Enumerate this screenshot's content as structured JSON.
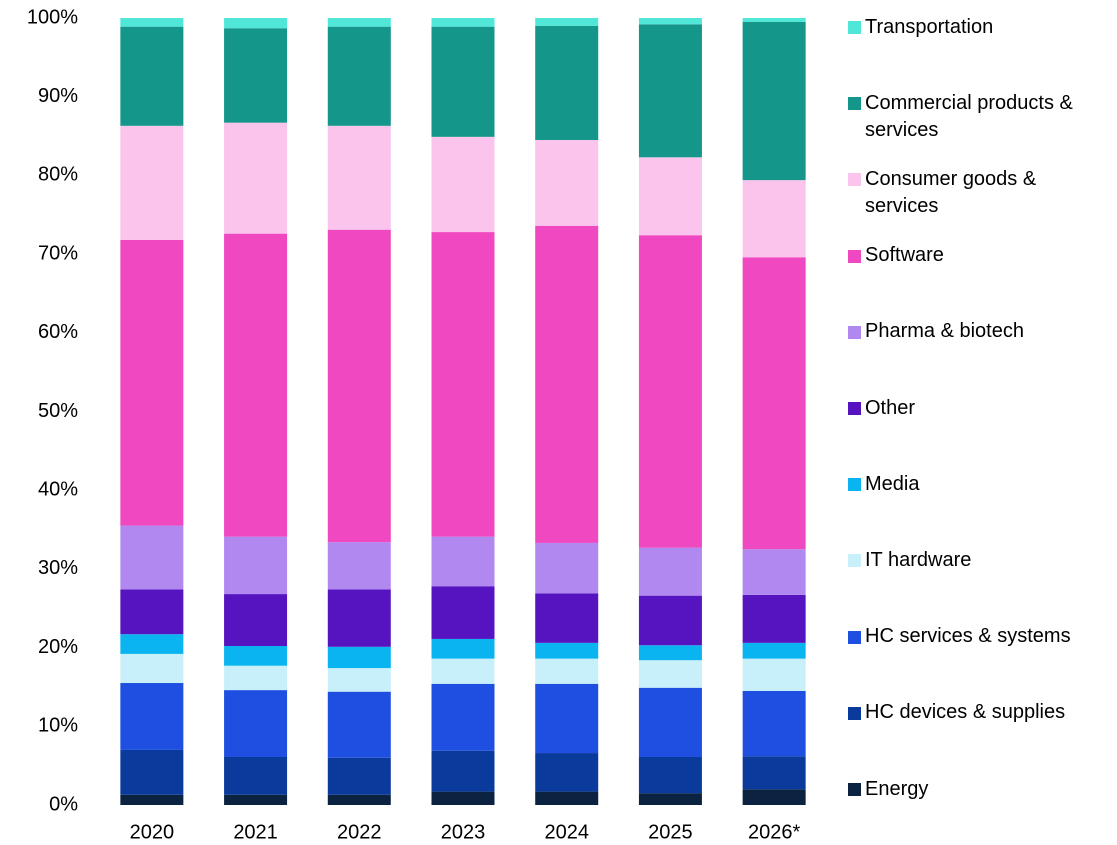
{
  "chart_data": {
    "type": "stacked_bar",
    "categories": [
      "2020",
      "2021",
      "2022",
      "2023",
      "2024",
      "2025",
      "2026*"
    ],
    "series": [
      {
        "name": "Energy",
        "color": "#0b2341",
        "values": [
          1.3,
          1.3,
          1.3,
          1.7,
          1.7,
          1.5,
          2.0
        ]
      },
      {
        "name": "HC devices & supplies",
        "color": "#0a3a9c",
        "values": [
          5.7,
          4.8,
          4.7,
          5.2,
          4.9,
          4.6,
          4.2
        ]
      },
      {
        "name": "HC services & systems",
        "color": "#1f4fe0",
        "values": [
          8.5,
          8.5,
          8.4,
          8.5,
          8.8,
          8.8,
          8.3
        ]
      },
      {
        "name": "IT hardware",
        "color": "#c8f0fa",
        "values": [
          3.7,
          3.1,
          3.0,
          3.2,
          3.2,
          3.5,
          4.1
        ]
      },
      {
        "name": "Media",
        "color": "#0ab4f0",
        "values": [
          2.5,
          2.5,
          2.7,
          2.5,
          2.0,
          1.9,
          2.0
        ]
      },
      {
        "name": "Other",
        "color": "#5514c0",
        "values": [
          5.7,
          6.6,
          7.3,
          6.7,
          6.3,
          6.3,
          6.1
        ]
      },
      {
        "name": "Pharma & biotech",
        "color": "#b088f0",
        "values": [
          8.1,
          7.3,
          6.0,
          6.3,
          6.4,
          6.1,
          5.8
        ]
      },
      {
        "name": "Software",
        "color": "#f048c0",
        "values": [
          36.3,
          38.5,
          39.7,
          38.7,
          40.3,
          39.7,
          37.1
        ]
      },
      {
        "name": "Consumer goods & services",
        "color": "#fac4ec",
        "values": [
          14.5,
          14.1,
          13.2,
          12.1,
          10.9,
          9.9,
          9.8
        ]
      },
      {
        "name": "Commercial products & services",
        "color": "#14968a",
        "values": [
          12.6,
          12.0,
          12.6,
          14.0,
          14.5,
          16.9,
          20.1
        ]
      },
      {
        "name": "Transportation",
        "color": "#50e6d8",
        "values": [
          1.1,
          1.3,
          1.1,
          1.1,
          1.0,
          0.8,
          0.5
        ]
      }
    ],
    "ylim": [
      0,
      100
    ],
    "yticks": [
      {
        "value": 0,
        "label": "0%"
      },
      {
        "value": 10,
        "label": "10%"
      },
      {
        "value": 20,
        "label": "20%"
      },
      {
        "value": 30,
        "label": "30%"
      },
      {
        "value": 40,
        "label": "40%"
      },
      {
        "value": 50,
        "label": "50%"
      },
      {
        "value": 60,
        "label": "60%"
      },
      {
        "value": 70,
        "label": "70%"
      },
      {
        "value": 80,
        "label": "80%"
      },
      {
        "value": 90,
        "label": "90%"
      },
      {
        "value": 100,
        "label": "100%"
      }
    ],
    "legend": "right"
  }
}
